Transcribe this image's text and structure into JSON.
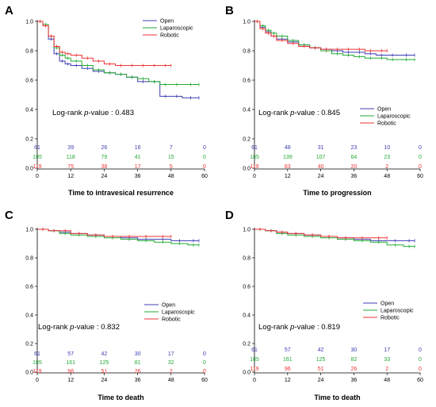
{
  "colors": {
    "Open": "#3c3cb4",
    "Laparoscopic": "#22aa33",
    "Robotic": "#ee3333"
  },
  "chart_data": [
    {
      "panel": "A",
      "type": "line",
      "step": true,
      "xlabel": "Time to intravesical resurrence",
      "ylabel": "",
      "xlim": [
        0,
        60
      ],
      "ylim": [
        0.0,
        1.0
      ],
      "xticks": [
        0,
        12,
        24,
        36,
        48,
        60
      ],
      "yticks": [
        0.0,
        0.2,
        0.4,
        0.6,
        0.8,
        1.0
      ],
      "legend_position": "top-right",
      "logrank": {
        "prefix": "Log-rank ",
        "italic": "p",
        "suffix": "-value : 0.483"
      },
      "series": [
        {
          "name": "Open",
          "color_key": "Open",
          "risk": [
            "61",
            "39",
            "26",
            "16",
            "7",
            "0"
          ],
          "x": [
            0,
            2,
            4,
            6,
            8,
            10,
            12,
            16,
            20,
            24,
            28,
            32,
            36,
            40,
            44,
            48,
            52,
            58
          ],
          "y": [
            1.0,
            0.97,
            0.88,
            0.78,
            0.73,
            0.71,
            0.7,
            0.68,
            0.66,
            0.65,
            0.64,
            0.62,
            0.59,
            0.59,
            0.49,
            0.49,
            0.48,
            0.48
          ]
        },
        {
          "name": "Laparoscopic",
          "color_key": "Laparoscopic",
          "risk": [
            "185",
            "118",
            "79",
            "41",
            "15",
            "0"
          ],
          "x": [
            0,
            2,
            4,
            6,
            8,
            10,
            12,
            16,
            20,
            24,
            28,
            32,
            36,
            40,
            44,
            48,
            52,
            58
          ],
          "y": [
            1.0,
            0.98,
            0.9,
            0.82,
            0.77,
            0.75,
            0.73,
            0.7,
            0.67,
            0.65,
            0.64,
            0.62,
            0.61,
            0.59,
            0.57,
            0.57,
            0.57,
            0.57
          ]
        },
        {
          "name": "Robotic",
          "color_key": "Robotic",
          "risk": [
            "119",
            "75",
            "38",
            "17",
            "5",
            "0"
          ],
          "x": [
            0,
            2,
            4,
            6,
            8,
            10,
            12,
            16,
            20,
            24,
            28,
            32,
            36,
            40,
            44,
            48
          ],
          "y": [
            1.0,
            0.97,
            0.9,
            0.83,
            0.79,
            0.78,
            0.77,
            0.75,
            0.73,
            0.71,
            0.7,
            0.7,
            0.7,
            0.7,
            0.7,
            0.7
          ]
        }
      ]
    },
    {
      "panel": "B",
      "type": "line",
      "step": true,
      "xlabel": "Time to progression",
      "ylabel": "",
      "xlim": [
        0,
        60
      ],
      "ylim": [
        0.0,
        1.0
      ],
      "xticks": [
        0,
        12,
        24,
        36,
        48,
        60
      ],
      "yticks": [
        0.0,
        0.2,
        0.4,
        0.6,
        0.8,
        1.0
      ],
      "legend_position": "bottom-right",
      "logrank": {
        "prefix": "Log-rank ",
        "italic": "p",
        "suffix": "-value : 0.845"
      },
      "series": [
        {
          "name": "Open",
          "color_key": "Open",
          "risk": [
            "61",
            "48",
            "31",
            "23",
            "10",
            "0"
          ],
          "x": [
            0,
            2,
            4,
            6,
            8,
            12,
            16,
            20,
            24,
            28,
            32,
            36,
            40,
            44,
            48,
            52,
            58
          ],
          "y": [
            1.0,
            0.96,
            0.93,
            0.9,
            0.88,
            0.86,
            0.84,
            0.82,
            0.81,
            0.8,
            0.79,
            0.79,
            0.78,
            0.77,
            0.77,
            0.77,
            0.77
          ]
        },
        {
          "name": "Laparoscopic",
          "color_key": "Laparoscopic",
          "risk": [
            "185",
            "139",
            "107",
            "64",
            "23",
            "0"
          ],
          "x": [
            0,
            2,
            4,
            6,
            8,
            12,
            16,
            20,
            24,
            28,
            32,
            36,
            40,
            44,
            48,
            52,
            58
          ],
          "y": [
            1.0,
            0.97,
            0.94,
            0.92,
            0.9,
            0.87,
            0.84,
            0.82,
            0.8,
            0.78,
            0.77,
            0.76,
            0.75,
            0.75,
            0.74,
            0.74,
            0.74
          ]
        },
        {
          "name": "Robotic",
          "color_key": "Robotic",
          "risk": [
            "119",
            "83",
            "40",
            "20",
            "2",
            "0"
          ],
          "x": [
            0,
            2,
            4,
            6,
            8,
            12,
            16,
            20,
            24,
            28,
            32,
            36,
            40,
            44,
            48
          ],
          "y": [
            1.0,
            0.95,
            0.92,
            0.9,
            0.87,
            0.85,
            0.83,
            0.82,
            0.81,
            0.81,
            0.81,
            0.81,
            0.8,
            0.8,
            0.8
          ]
        }
      ]
    },
    {
      "panel": "C",
      "type": "line",
      "step": true,
      "xlabel": "Time to death",
      "ylabel": "",
      "xlim": [
        0,
        60
      ],
      "ylim": [
        0.0,
        1.0
      ],
      "xticks": [
        0,
        12,
        24,
        36,
        48,
        60
      ],
      "yticks": [
        0.0,
        0.2,
        0.4,
        0.6,
        0.8,
        1.0
      ],
      "legend_position": "bottom-right",
      "logrank": {
        "prefix": "Log-rank ",
        "italic": "p",
        "suffix": "-value : 0.832"
      },
      "series": [
        {
          "name": "Open",
          "color_key": "Open",
          "risk": [
            "61",
            "57",
            "42",
            "30",
            "17",
            "0"
          ],
          "x": [
            0,
            4,
            8,
            12,
            18,
            24,
            30,
            36,
            42,
            48,
            54,
            58
          ],
          "y": [
            1.0,
            0.99,
            0.98,
            0.97,
            0.96,
            0.95,
            0.94,
            0.93,
            0.93,
            0.92,
            0.92,
            0.92
          ]
        },
        {
          "name": "Laparoscopic",
          "color_key": "Laparoscopic",
          "risk": [
            "185",
            "161",
            "125",
            "81",
            "32",
            "0"
          ],
          "x": [
            0,
            4,
            8,
            12,
            18,
            24,
            30,
            36,
            42,
            48,
            54,
            58
          ],
          "y": [
            1.0,
            0.99,
            0.97,
            0.96,
            0.95,
            0.94,
            0.93,
            0.92,
            0.91,
            0.9,
            0.89,
            0.89
          ]
        },
        {
          "name": "Robotic",
          "color_key": "Robotic",
          "risk": [
            "119",
            "96",
            "51",
            "26",
            "2",
            "0"
          ],
          "x": [
            0,
            4,
            8,
            12,
            18,
            24,
            30,
            36,
            42,
            48
          ],
          "y": [
            1.0,
            0.99,
            0.99,
            0.97,
            0.96,
            0.95,
            0.95,
            0.95,
            0.95,
            0.95
          ]
        }
      ]
    },
    {
      "panel": "D",
      "type": "line",
      "step": true,
      "xlabel": "Time to death",
      "ylabel": "",
      "xlim": [
        0,
        60
      ],
      "ylim": [
        0.0,
        1.0
      ],
      "xticks": [
        0,
        12,
        24,
        36,
        48,
        60
      ],
      "yticks": [
        0.0,
        0.2,
        0.4,
        0.6,
        0.8,
        1.0
      ],
      "legend_position": "bottom-right",
      "logrank": {
        "prefix": "Log-rank ",
        "italic": "p",
        "suffix": "-value : 0.819"
      },
      "series": [
        {
          "name": "Open",
          "color_key": "Open",
          "risk": [
            "61",
            "57",
            "42",
            "30",
            "17",
            "0"
          ],
          "x": [
            0,
            4,
            8,
            12,
            18,
            24,
            30,
            36,
            42,
            48,
            54,
            58
          ],
          "y": [
            1.0,
            0.99,
            0.98,
            0.97,
            0.96,
            0.95,
            0.94,
            0.93,
            0.92,
            0.92,
            0.92,
            0.92
          ]
        },
        {
          "name": "Laparoscopic",
          "color_key": "Laparoscopic",
          "risk": [
            "185",
            "161",
            "125",
            "82",
            "33",
            "0"
          ],
          "x": [
            0,
            4,
            8,
            12,
            18,
            24,
            30,
            36,
            42,
            48,
            54,
            58
          ],
          "y": [
            1.0,
            0.99,
            0.97,
            0.96,
            0.95,
            0.94,
            0.93,
            0.92,
            0.91,
            0.89,
            0.88,
            0.88
          ]
        },
        {
          "name": "Robotic",
          "color_key": "Robotic",
          "risk": [
            "119",
            "96",
            "51",
            "26",
            "2",
            "0"
          ],
          "x": [
            0,
            4,
            8,
            12,
            18,
            24,
            30,
            36,
            42,
            48
          ],
          "y": [
            1.0,
            0.99,
            0.98,
            0.97,
            0.96,
            0.95,
            0.94,
            0.94,
            0.94,
            0.94
          ]
        }
      ]
    }
  ]
}
